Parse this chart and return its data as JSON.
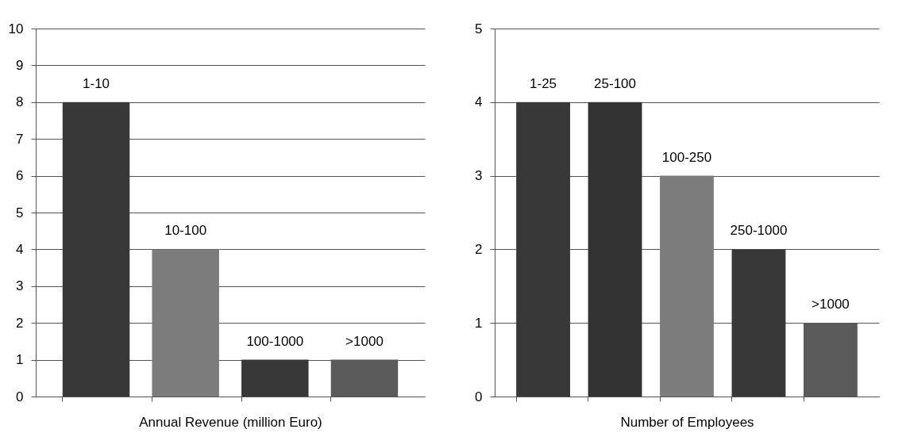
{
  "chart_data": [
    {
      "type": "bar",
      "xlabel": "Annual Revenue (million Euro)",
      "categories": [
        "1-10",
        "10-100",
        "100-1000",
        ">1000"
      ],
      "values": [
        8,
        4,
        1,
        1
      ],
      "colors": [
        "#383838",
        "#7c7c7c",
        "#383838",
        "#5a5a5a"
      ],
      "ylim": [
        0,
        10
      ],
      "yticks": [
        0,
        1,
        2,
        3,
        4,
        5,
        6,
        7,
        8,
        9,
        10
      ],
      "grid": "y",
      "tick_labels": "y"
    },
    {
      "type": "bar",
      "xlabel": "Number of Employees",
      "categories": [
        "1-25",
        "25-100",
        "100-250",
        "250-1000",
        ">1000"
      ],
      "values": [
        4,
        4,
        3,
        2,
        1
      ],
      "colors": [
        "#383838",
        "#333333",
        "#7c7c7c",
        "#383838",
        "#5a5a5a"
      ],
      "ylim": [
        0,
        5
      ],
      "yticks": [
        0,
        1,
        2,
        3,
        4,
        5
      ],
      "grid": "y",
      "tick_labels": "y"
    }
  ]
}
